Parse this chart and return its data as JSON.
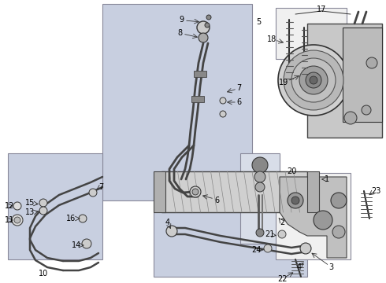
{
  "bg": "#ffffff",
  "box5_color": "#c8cfe0",
  "box10_color": "#c8cfe0",
  "box3_color": "#c8cfe0",
  "box2_color": "#d8dde8",
  "box17_color": "#f0f0f0",
  "box20_color": "#f0f0f0",
  "line_color": "#333333",
  "part_color": "#555555",
  "gray_part": "#aaaaaa",
  "label_fs": 7,
  "figw": 4.9,
  "figh": 3.6,
  "dpi": 100
}
